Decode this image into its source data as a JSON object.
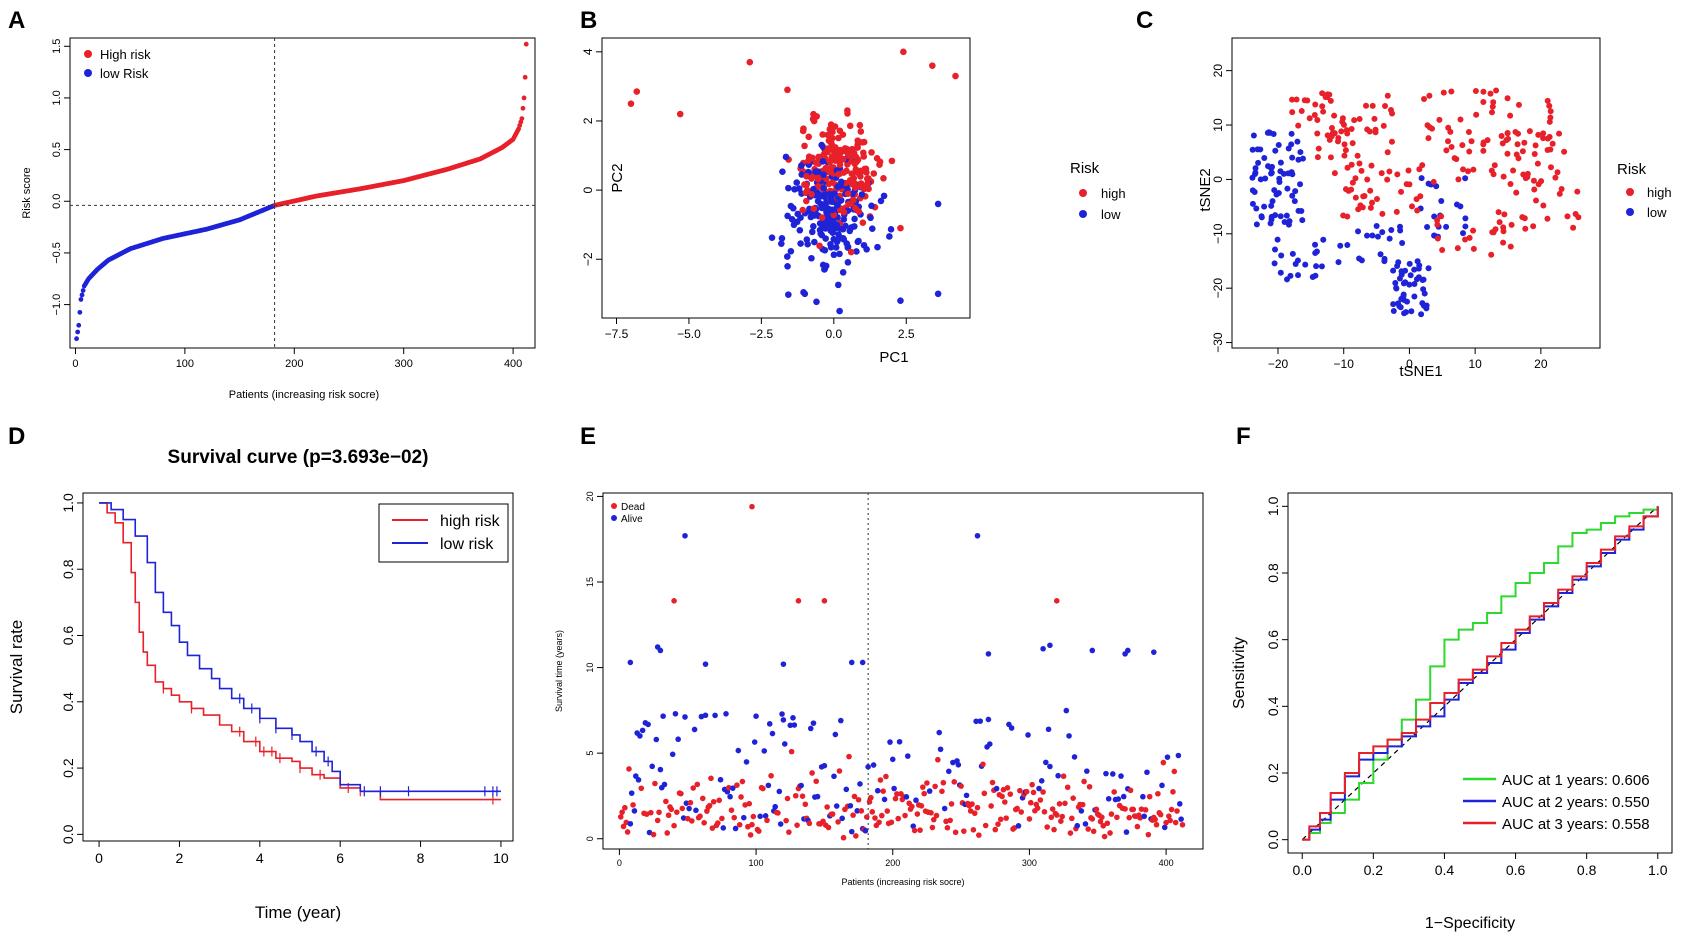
{
  "colors": {
    "high": "#e8202a",
    "low": "#1f23d8",
    "green": "#2ed82e",
    "axis": "#000000",
    "ref": "#555555"
  },
  "panel_labels": [
    "A",
    "B",
    "C",
    "D",
    "E",
    "F"
  ],
  "chart_data": [
    {
      "id": "A",
      "type": "scatter",
      "title": "",
      "xlabel": "Patients (increasing risk socre)",
      "ylabel": "Risk score",
      "xlim": [
        -5,
        420
      ],
      "ylim": [
        -1.42,
        1.58
      ],
      "xticks": [
        0,
        100,
        200,
        300,
        400
      ],
      "yticks": [
        -1.0,
        -0.5,
        0.0,
        0.5,
        1.0,
        1.5
      ],
      "ytick_labels": [
        "-1.0",
        "-0.5",
        "0.0",
        "0.5",
        "1.0",
        "1.5"
      ],
      "legend": [
        {
          "label": "High risk",
          "color": "high"
        },
        {
          "label": "low Risk",
          "color": "low"
        }
      ],
      "cutoff_x": 182,
      "cutoff_y": -0.04,
      "n_points": 412,
      "curve_points": [
        [
          1,
          -1.33
        ],
        [
          3,
          -1.2
        ],
        [
          5,
          -0.95
        ],
        [
          8,
          -0.82
        ],
        [
          12,
          -0.75
        ],
        [
          20,
          -0.66
        ],
        [
          30,
          -0.57
        ],
        [
          50,
          -0.46
        ],
        [
          80,
          -0.36
        ],
        [
          120,
          -0.27
        ],
        [
          150,
          -0.18
        ],
        [
          182,
          -0.04
        ],
        [
          220,
          0.05
        ],
        [
          260,
          0.12
        ],
        [
          300,
          0.2
        ],
        [
          340,
          0.31
        ],
        [
          370,
          0.41
        ],
        [
          390,
          0.52
        ],
        [
          400,
          0.6
        ],
        [
          405,
          0.7
        ],
        [
          408,
          0.8
        ],
        [
          410,
          1.0
        ],
        [
          411,
          1.2
        ],
        [
          412,
          1.52
        ]
      ]
    },
    {
      "id": "B",
      "type": "scatter",
      "xlabel": "PC1",
      "ylabel": "PC2",
      "xlim": [
        -8.0,
        4.7
      ],
      "ylim": [
        -3.7,
        4.4
      ],
      "xticks": [
        -7.5,
        -5.0,
        -2.5,
        0.0,
        2.5
      ],
      "xtick_labels": [
        "-7.5",
        "-5.0",
        "-2.5",
        "0.0",
        "2.5"
      ],
      "yticks": [
        -2,
        0,
        2,
        4
      ],
      "legend_title": "Risk",
      "legend": [
        {
          "label": "high",
          "color": "high"
        },
        {
          "label": "low",
          "color": "low"
        }
      ],
      "cluster": {
        "center": [
          0.0,
          0.0
        ],
        "spread": [
          1.0,
          1.0
        ],
        "n_high": 200,
        "n_low": 200
      },
      "outliers_high": [
        [
          -7.0,
          2.5
        ],
        [
          -6.8,
          2.85
        ],
        [
          -5.3,
          2.2
        ],
        [
          -2.9,
          3.7
        ],
        [
          -1.6,
          2.9
        ],
        [
          2.4,
          4.0
        ],
        [
          3.4,
          3.6
        ],
        [
          4.2,
          3.3
        ],
        [
          2.3,
          -1.1
        ]
      ],
      "outliers_low": [
        [
          2.3,
          -3.2
        ],
        [
          3.6,
          -3.0
        ],
        [
          -1.0,
          -3.0
        ],
        [
          3.6,
          -0.4
        ],
        [
          0.2,
          -3.5
        ]
      ]
    },
    {
      "id": "C",
      "type": "scatter",
      "xlabel": "tSNE1",
      "ylabel": "tSNE2",
      "xlim": [
        -27,
        29
      ],
      "ylim": [
        -31,
        26
      ],
      "xticks": [
        -20,
        -10,
        0,
        10,
        20
      ],
      "yticks": [
        -30,
        -20,
        -10,
        0,
        10,
        20
      ],
      "legend_title": "Risk",
      "legend": [
        {
          "label": "high",
          "color": "high"
        },
        {
          "label": "low",
          "color": "low"
        }
      ],
      "regions_high": [
        [
          -10,
          10,
          8,
          6,
          60
        ],
        [
          -5,
          -2,
          7,
          5,
          40
        ],
        [
          12,
          8,
          10,
          9,
          70
        ],
        [
          20,
          0,
          6,
          10,
          40
        ],
        [
          10,
          -10,
          6,
          4,
          20
        ]
      ],
      "regions_low": [
        [
          -20,
          0,
          4,
          9,
          70
        ],
        [
          -17,
          -15,
          4,
          4,
          20
        ],
        [
          0,
          -20,
          3,
          5,
          45
        ],
        [
          -6,
          -12,
          5,
          4,
          20
        ],
        [
          5,
          -5,
          4,
          6,
          20
        ]
      ]
    },
    {
      "id": "D",
      "type": "line",
      "title": "Survival curve (p=3.693e−02)",
      "xlabel": "Time (year)",
      "ylabel": "Survival rate",
      "xlim": [
        -0.4,
        10.3
      ],
      "ylim": [
        -0.02,
        1.03
      ],
      "xticks": [
        0,
        2,
        4,
        6,
        8,
        10
      ],
      "yticks": [
        0.0,
        0.2,
        0.4,
        0.6,
        0.8,
        1.0
      ],
      "ytick_labels": [
        "0.0",
        "0.2",
        "0.4",
        "0.6",
        "0.8",
        "1.0"
      ],
      "series": [
        {
          "name": "high risk",
          "color": "high",
          "x": [
            0,
            0.2,
            0.4,
            0.6,
            0.8,
            0.9,
            1.0,
            1.1,
            1.2,
            1.4,
            1.6,
            1.8,
            2.0,
            2.3,
            2.6,
            3.0,
            3.3,
            3.6,
            4.0,
            4.4,
            4.8,
            5.0,
            5.3,
            5.6,
            6.0,
            6.5,
            7.0,
            8.0,
            10.0
          ],
          "y": [
            1.0,
            0.97,
            0.94,
            0.88,
            0.79,
            0.7,
            0.61,
            0.55,
            0.51,
            0.46,
            0.44,
            0.42,
            0.4,
            0.38,
            0.36,
            0.33,
            0.31,
            0.28,
            0.25,
            0.23,
            0.22,
            0.2,
            0.18,
            0.17,
            0.14,
            0.13,
            0.105,
            0.105,
            0.105
          ]
        },
        {
          "name": "low risk",
          "color": "low",
          "x": [
            0,
            0.3,
            0.6,
            0.9,
            1.2,
            1.4,
            1.6,
            1.8,
            2.0,
            2.2,
            2.5,
            2.8,
            3.0,
            3.3,
            3.6,
            4.0,
            4.4,
            4.8,
            5.0,
            5.3,
            5.6,
            5.8,
            6.0,
            6.5,
            7.0,
            8.0,
            10.0
          ],
          "y": [
            1.0,
            0.98,
            0.95,
            0.9,
            0.82,
            0.73,
            0.67,
            0.63,
            0.58,
            0.54,
            0.5,
            0.47,
            0.44,
            0.41,
            0.38,
            0.35,
            0.32,
            0.3,
            0.28,
            0.25,
            0.22,
            0.19,
            0.15,
            0.13,
            0.13,
            0.13,
            0.13
          ]
        }
      ],
      "censor_high": [
        1.6,
        2.3,
        3.5,
        3.9,
        4.1,
        4.3,
        4.5,
        5.0,
        5.5,
        6.2,
        6.5,
        9.8
      ],
      "censor_low": [
        3.5,
        3.8,
        4.0,
        4.4,
        4.8,
        5.4,
        5.7,
        6.6,
        7.0,
        7.7,
        9.6,
        9.8,
        9.9
      ]
    },
    {
      "id": "E",
      "type": "scatter",
      "xlabel": "Patients (increasing risk socre)",
      "ylabel": "Survival time (years)",
      "xlim": [
        -12,
        427
      ],
      "ylim": [
        -0.6,
        20.2
      ],
      "xticks": [
        0,
        100,
        200,
        300,
        400
      ],
      "yticks": [
        0,
        5,
        10,
        15,
        20
      ],
      "legend": [
        {
          "label": "Dead",
          "color": "high"
        },
        {
          "label": "Alive",
          "color": "low"
        }
      ],
      "cutoff_x": 182,
      "outliers_dead": [
        [
          97,
          19.4
        ],
        [
          40,
          13.9
        ],
        [
          131,
          13.9
        ],
        [
          150,
          13.9
        ],
        [
          320,
          13.9
        ]
      ],
      "outliers_alive": [
        [
          48,
          17.7
        ],
        [
          262,
          17.7
        ],
        [
          8,
          10.3
        ],
        [
          28,
          11.2
        ],
        [
          30,
          11.0
        ],
        [
          63,
          10.2
        ],
        [
          120,
          10.2
        ],
        [
          170,
          10.3
        ],
        [
          178,
          10.3
        ],
        [
          270,
          10.8
        ],
        [
          310,
          11.1
        ],
        [
          315,
          11.3
        ],
        [
          370,
          10.8
        ],
        [
          391,
          10.9
        ],
        [
          372,
          11.0
        ],
        [
          346,
          11.0
        ]
      ]
    },
    {
      "id": "F",
      "type": "line",
      "xlabel": "1−Specificity",
      "ylabel": "Sensitivity",
      "xlim": [
        -0.04,
        1.04
      ],
      "ylim": [
        -0.04,
        1.04
      ],
      "xticks": [
        0.0,
        0.2,
        0.4,
        0.6,
        0.8,
        1.0
      ],
      "xtick_labels": [
        "0.0",
        "0.2",
        "0.4",
        "0.6",
        "0.8",
        "1.0"
      ],
      "yticks": [
        0.0,
        0.2,
        0.4,
        0.6,
        0.8,
        1.0
      ],
      "ytick_labels": [
        "0.0",
        "0.2",
        "0.4",
        "0.6",
        "0.8",
        "1.0"
      ],
      "series": [
        {
          "name": "AUC at 1 years: 0.606",
          "color": "green",
          "x": [
            0,
            0.02,
            0.05,
            0.08,
            0.12,
            0.16,
            0.2,
            0.24,
            0.28,
            0.32,
            0.36,
            0.4,
            0.44,
            0.48,
            0.52,
            0.56,
            0.6,
            0.64,
            0.68,
            0.72,
            0.76,
            0.8,
            0.84,
            0.88,
            0.92,
            0.96,
            1.0
          ],
          "y": [
            0,
            0.02,
            0.05,
            0.08,
            0.12,
            0.17,
            0.24,
            0.3,
            0.36,
            0.42,
            0.52,
            0.6,
            0.63,
            0.65,
            0.68,
            0.73,
            0.77,
            0.8,
            0.83,
            0.88,
            0.92,
            0.93,
            0.95,
            0.97,
            0.98,
            0.99,
            1.0
          ]
        },
        {
          "name": "AUC at 2 years: 0.550",
          "color": "low",
          "x": [
            0,
            0.02,
            0.05,
            0.08,
            0.12,
            0.16,
            0.2,
            0.24,
            0.28,
            0.32,
            0.36,
            0.4,
            0.44,
            0.48,
            0.52,
            0.56,
            0.6,
            0.64,
            0.68,
            0.72,
            0.76,
            0.8,
            0.84,
            0.88,
            0.92,
            0.96,
            1.0
          ],
          "y": [
            0,
            0.03,
            0.06,
            0.12,
            0.19,
            0.24,
            0.26,
            0.28,
            0.31,
            0.34,
            0.37,
            0.42,
            0.47,
            0.5,
            0.53,
            0.57,
            0.62,
            0.66,
            0.7,
            0.74,
            0.78,
            0.82,
            0.86,
            0.9,
            0.93,
            0.97,
            1.0
          ]
        },
        {
          "name": "AUC at 3 years: 0.558",
          "color": "high",
          "x": [
            0,
            0.02,
            0.05,
            0.08,
            0.12,
            0.16,
            0.2,
            0.24,
            0.28,
            0.32,
            0.36,
            0.4,
            0.44,
            0.48,
            0.52,
            0.56,
            0.6,
            0.64,
            0.68,
            0.72,
            0.76,
            0.8,
            0.84,
            0.88,
            0.92,
            0.96,
            1.0
          ],
          "y": [
            0,
            0.04,
            0.08,
            0.14,
            0.2,
            0.26,
            0.28,
            0.3,
            0.32,
            0.36,
            0.41,
            0.44,
            0.48,
            0.51,
            0.55,
            0.59,
            0.63,
            0.67,
            0.71,
            0.75,
            0.79,
            0.83,
            0.87,
            0.91,
            0.94,
            0.97,
            1.0
          ]
        }
      ]
    }
  ]
}
